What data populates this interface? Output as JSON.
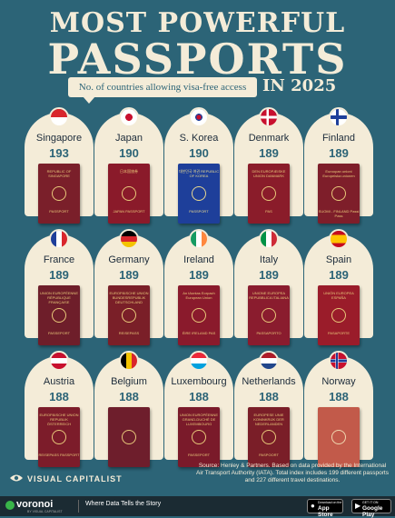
{
  "header": {
    "title_line1": "MOST POWERFUL",
    "title_line2": "PASSPORTS",
    "subtitle": "No. of countries allowing visa-free access",
    "year": "IN 2025"
  },
  "countries": [
    {
      "name": "Singapore",
      "score": "193",
      "passport_color": "#7a1f2a",
      "text_color": "#e8c87a",
      "cover_top": "REPUBLIC OF SINGAPORE",
      "cover_bottom": "PASSPORT",
      "flag": "singapore"
    },
    {
      "name": "Japan",
      "score": "190",
      "passport_color": "#8a1a2a",
      "text_color": "#e8c87a",
      "cover_top": "日本国旅券",
      "cover_bottom": "JAPAN PASSPORT",
      "flag": "japan"
    },
    {
      "name": "S. Korea",
      "score": "190",
      "passport_color": "#1e3f9a",
      "text_color": "#e8d890",
      "cover_top": "대한민국 여권 REPUBLIC OF KOREA",
      "cover_bottom": "PASSPORT",
      "flag": "korea"
    },
    {
      "name": "Denmark",
      "score": "189",
      "passport_color": "#8a1c2a",
      "text_color": "#e8c87a",
      "cover_top": "DEN EUROPÆISKE UNION DANMARK",
      "cover_bottom": "PAS",
      "flag": "denmark"
    },
    {
      "name": "Finland",
      "score": "189",
      "passport_color": "#7e1e2a",
      "text_color": "#e8c87a",
      "cover_top": "Euroopan unioni Europeiska unionen",
      "cover_bottom": "SUOMI - FINLAND Passi Pass",
      "flag": "finland"
    },
    {
      "name": "France",
      "score": "189",
      "passport_color": "#6e1e2a",
      "text_color": "#e8c87a",
      "cover_top": "UNION EUROPÉENNE RÉPUBLIQUE FRANÇAISE",
      "cover_bottom": "PASSEPORT",
      "flag": "france"
    },
    {
      "name": "Germany",
      "score": "189",
      "passport_color": "#7a1f28",
      "text_color": "#e8c87a",
      "cover_top": "EUROPÄISCHE UNION BUNDESREPUBLIK DEUTSCHLAND",
      "cover_bottom": "REISEPASS",
      "flag": "germany"
    },
    {
      "name": "Ireland",
      "score": "189",
      "passport_color": "#8a1a2c",
      "text_color": "#e8c87a",
      "cover_top": "An tAontas Eorpach European Union",
      "cover_bottom": "ÉIRE IRELAND PAS",
      "flag": "ireland"
    },
    {
      "name": "Italy",
      "score": "189",
      "passport_color": "#8a1c2e",
      "text_color": "#e8c87a",
      "cover_top": "UNIONE EUROPEA REPUBBLICA ITALIANA",
      "cover_bottom": "PASSAPORTO",
      "flag": "italy"
    },
    {
      "name": "Spain",
      "score": "189",
      "passport_color": "#9a1c2a",
      "text_color": "#e8c87a",
      "cover_top": "UNIÓN EUROPEA ESPAÑA",
      "cover_bottom": "PASAPORTE",
      "flag": "spain"
    },
    {
      "name": "Austria",
      "score": "188",
      "passport_color": "#7c1c2a",
      "text_color": "#e8c87a",
      "cover_top": "EUROPÄISCHE UNION REPUBLIK ÖSTERREICH",
      "cover_bottom": "REISEPASS PASSPORT",
      "flag": "austria"
    },
    {
      "name": "Belgium",
      "score": "188",
      "passport_color": "#6e1e2c",
      "text_color": "#e8c87a",
      "cover_top": "",
      "cover_bottom": "",
      "flag": "belgium"
    },
    {
      "name": "Luxembourg",
      "score": "188",
      "passport_color": "#7a1a2a",
      "text_color": "#e8c87a",
      "cover_top": "UNION EUROPÉENNE GRAND-DUCHÉ DE LUXEMBOURG",
      "cover_bottom": "PASSEPORT",
      "flag": "luxembourg"
    },
    {
      "name": "Netherlands",
      "score": "188",
      "passport_color": "#7a1e28",
      "text_color": "#e8c87a",
      "cover_top": "EUROPESE UNIE KONINKRIJK DER NEDERLANDEN",
      "cover_bottom": "PASPOORT",
      "flag": "netherlands"
    },
    {
      "name": "Norway",
      "score": "188",
      "passport_color": "#c25a4a",
      "text_color": "#f0d8b0",
      "cover_top": "",
      "cover_bottom": "",
      "flag": "norway"
    }
  ],
  "source": "Source: Henley & Partners. Based on data provided by the International Air Transport Authority (IATA). Total index includes 199 different passports and 227 different travel destinations.",
  "brand": "VISUAL CAPITALIST",
  "footer": {
    "logo": "voronoi",
    "logo_sub": "BY VISUAL CAPITALIST",
    "tagline": "Where Data Tells the Story",
    "appstore_small": "Download on the",
    "appstore_big": "App Store",
    "googleplay_small": "GET IT ON",
    "googleplay_big": "Google Play"
  },
  "colors": {
    "background": "#2c6477",
    "card": "#f4ecd8",
    "title": "#f4ecd8",
    "footer": "#1b2b33"
  }
}
